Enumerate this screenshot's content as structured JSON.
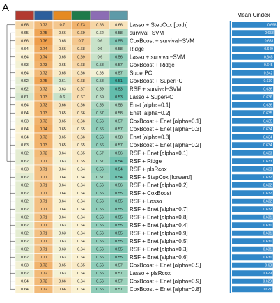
{
  "chart_data": [
    {
      "type": "heatmap",
      "panel_label": "A",
      "categories": [
        "Lasso + StepCox [both]",
        "survival−SVM",
        "CoxBoost + survival−SVM",
        "Ridge",
        "Lasso + survival−SVM",
        "CoxBoost + Ridge",
        "SuperPC",
        "CoxBoost + SuperPC",
        "RSF + survival−SVM",
        "Lasso + SuperPC",
        "Enet [alpha=0.1]",
        "Enet [alpha=0.2]",
        "CoxBoost + Enet [alpha=0.1]",
        "CoxBoost + Enet [alpha=0.3]",
        "Enet [alpha=0.3]",
        "CoxBoost + Enet [alpha=0.2]",
        "RSF + Enet [alpha=0.1]",
        "RSF + Ridge",
        "RSF + plsRcox",
        "RSF + StepCox [forward]",
        "RSF + Enet [alpha=0.2]",
        "RSF + CoxBoost",
        "RSF + Lasso",
        "RSF + Enet [alpha=0.7]",
        "RSF + Enet [alpha=0.8]",
        "RSF + Enet [alpha=0.4]",
        "RSF + Enet [alpha=0.9]",
        "RSF + Enet [alpha=0.5]",
        "RSF + Enet [alpha=0.3]",
        "RSF + Enet [alpha=0.6]",
        "CoxBoost + Enet [alpha=0.5]",
        "Lasso + plsRcox",
        "CoxBoost + Enet [alpha=0.9]",
        "CoxBoost + Enet [alpha=0.8]"
      ],
      "series": [
        {
          "color": "#b23a30",
          "values": [
            0.68,
            0.65,
            0.66,
            0.64,
            0.64,
            0.63,
            0.64,
            0.62,
            0.62,
            0.61,
            0.64,
            0.64,
            0.63,
            0.64,
            0.64,
            0.63,
            0.62,
            0.62,
            0.63,
            0.62,
            0.62,
            0.62,
            0.62,
            0.62,
            0.62,
            0.62,
            0.62,
            0.62,
            0.62,
            0.62,
            0.63,
            0.62,
            0.64,
            0.64
          ]
        },
        {
          "color": "#2d5f9c",
          "values": [
            0.72,
            0.75,
            0.76,
            0.74,
            0.74,
            0.73,
            0.72,
            0.75,
            0.72,
            0.73,
            0.73,
            0.73,
            0.73,
            0.74,
            0.73,
            0.73,
            0.72,
            0.71,
            0.71,
            0.71,
            0.71,
            0.71,
            0.71,
            0.71,
            0.71,
            0.71,
            0.71,
            0.71,
            0.71,
            0.71,
            0.73,
            0.72,
            0.72,
            0.72
          ]
        },
        {
          "color": "#e58a22",
          "values": [
            0.7,
            0.66,
            0.65,
            0.66,
            0.65,
            0.65,
            0.65,
            0.61,
            0.63,
            0.6,
            0.66,
            0.65,
            0.65,
            0.65,
            0.65,
            0.65,
            0.64,
            0.63,
            0.64,
            0.64,
            0.64,
            0.64,
            0.64,
            0.64,
            0.64,
            0.63,
            0.63,
            0.63,
            0.63,
            0.63,
            0.65,
            0.63,
            0.66,
            0.66
          ]
        },
        {
          "color": "#1f7a4b",
          "values": [
            0.73,
            0.69,
            0.7,
            0.68,
            0.69,
            0.68,
            0.66,
            0.68,
            0.67,
            0.67,
            0.66,
            0.66,
            0.66,
            0.65,
            0.66,
            0.65,
            0.65,
            0.65,
            0.64,
            0.64,
            0.64,
            0.64,
            0.64,
            0.64,
            0.64,
            0.64,
            0.64,
            0.64,
            0.64,
            0.64,
            0.65,
            0.64,
            0.64,
            0.64
          ]
        },
        {
          "color": "#8c6cb4",
          "values": [
            0.68,
            0.62,
            0.6,
            0.6,
            0.6,
            0.58,
            0.63,
            0.58,
            0.59,
            0.59,
            0.58,
            0.57,
            0.56,
            0.56,
            0.56,
            0.56,
            0.57,
            0.57,
            0.56,
            0.57,
            0.56,
            0.56,
            0.56,
            0.56,
            0.56,
            0.56,
            0.56,
            0.56,
            0.56,
            0.56,
            0.56,
            0.56,
            0.56,
            0.56
          ]
        },
        {
          "color": "#5e9aa8",
          "values": [
            0.66,
            0.58,
            0.55,
            0.58,
            0.56,
            0.57,
            0.57,
            0.51,
            0.53,
            0.53,
            0.58,
            0.58,
            0.57,
            0.57,
            0.58,
            0.57,
            0.56,
            0.54,
            0.54,
            0.54,
            0.56,
            0.55,
            0.55,
            0.55,
            0.55,
            0.55,
            0.55,
            0.55,
            0.55,
            0.55,
            0.57,
            0.57,
            0.57,
            0.57
          ]
        }
      ]
    },
    {
      "type": "bar",
      "title": "Mean Cindex",
      "color": "#3087c8",
      "values": [
        0.698,
        0.658,
        0.653,
        0.649,
        0.645,
        0.645,
        0.642,
        0.639,
        0.636,
        0.636,
        0.636,
        0.635,
        0.635,
        0.634,
        0.634,
        0.634,
        0.633,
        0.633,
        0.633,
        0.632,
        0.632,
        0.632,
        0.632,
        0.632,
        0.631,
        0.631,
        0.631,
        0.631,
        0.631,
        0.631,
        0.63,
        0.629,
        0.629,
        0.627
      ]
    }
  ]
}
